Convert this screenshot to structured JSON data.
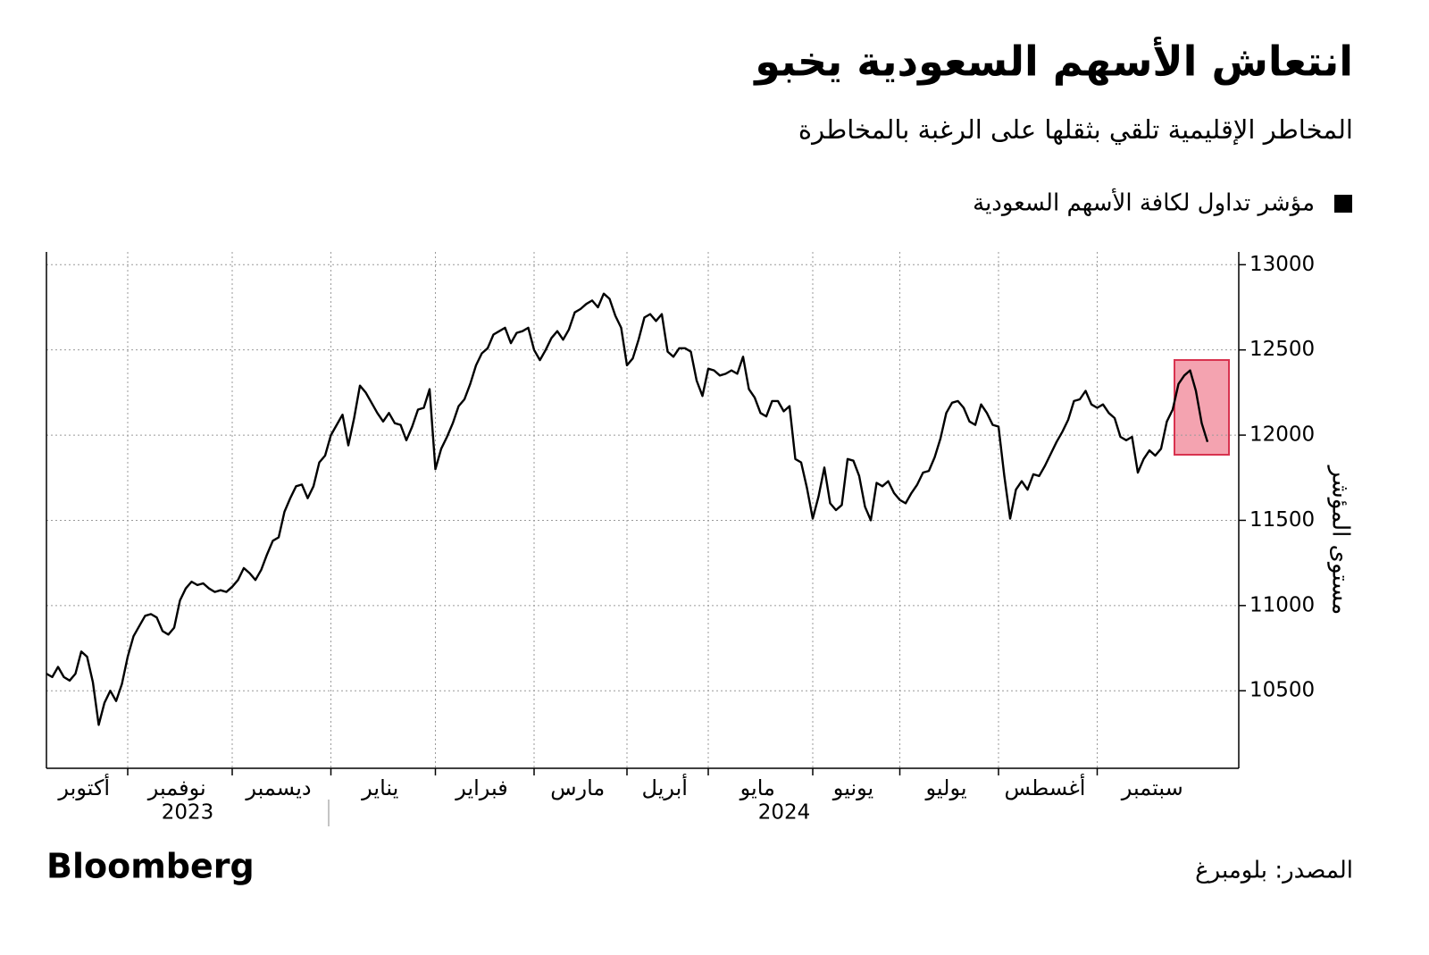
{
  "chart_data": {
    "type": "line",
    "title": "انتعاش الأسهم السعودية يخبو",
    "subtitle": "المخاطر الإقليمية تلقي بثقلها على الرغبة بالمخاطرة",
    "y_axis_label": "مستوى المؤشر",
    "source": "المصدر: بلومبرغ",
    "brand": "Bloomberg",
    "x_years": [
      "2023",
      "2024"
    ],
    "categories": [
      "أكتوبر",
      null,
      null,
      null,
      null,
      null,
      null,
      null,
      null,
      null,
      null,
      null,
      null,
      null,
      "نوفمبر",
      null,
      null,
      null,
      null,
      null,
      null,
      null,
      null,
      null,
      null,
      null,
      null,
      null,
      null,
      null,
      null,
      null,
      "ديسمبر",
      null,
      null,
      null,
      null,
      null,
      null,
      null,
      null,
      null,
      null,
      null,
      null,
      null,
      null,
      null,
      null,
      "يناير",
      null,
      null,
      null,
      null,
      null,
      null,
      null,
      null,
      null,
      null,
      null,
      null,
      null,
      null,
      null,
      null,
      null,
      "فبراير",
      null,
      null,
      null,
      null,
      null,
      null,
      null,
      null,
      null,
      null,
      null,
      null,
      null,
      null,
      null,
      null,
      "مارس",
      null,
      null,
      null,
      null,
      null,
      null,
      null,
      null,
      null,
      null,
      null,
      null,
      null,
      null,
      null,
      "أبريل",
      null,
      null,
      null,
      null,
      null,
      null,
      null,
      null,
      null,
      null,
      null,
      null,
      null,
      "مايو",
      null,
      null,
      null,
      null,
      null,
      null,
      null,
      null,
      null,
      null,
      null,
      null,
      null,
      null,
      null,
      null,
      null,
      "يونيو",
      null,
      null,
      null,
      null,
      null,
      null,
      null,
      null,
      null,
      null,
      null,
      null,
      null,
      null,
      "يوليو",
      null,
      null,
      null,
      null,
      null,
      null,
      null,
      null,
      null,
      null,
      null,
      null,
      null,
      null,
      null,
      null,
      "أغسطس",
      null,
      null,
      null,
      null,
      null,
      null,
      null,
      null,
      null,
      null,
      null,
      null,
      null,
      null,
      null,
      null,
      "سبتمبر",
      null,
      null,
      null,
      null,
      null,
      null,
      null,
      null,
      null,
      null,
      null,
      null,
      null,
      null,
      null,
      null,
      null,
      null,
      null
    ],
    "series": [
      {
        "name": "مؤشر تداول لكافة الأسهم السعودية",
        "color": "#000000",
        "values": [
          10600,
          10580,
          10640,
          10580,
          10560,
          10600,
          10730,
          10700,
          10550,
          10300,
          10430,
          10500,
          10440,
          10540,
          10700,
          10820,
          10880,
          10940,
          10950,
          10930,
          10850,
          10830,
          10870,
          11030,
          11100,
          11140,
          11120,
          11130,
          11100,
          11080,
          11090,
          11080,
          11110,
          11150,
          11220,
          11190,
          11150,
          11210,
          11300,
          11380,
          11400,
          11550,
          11630,
          11700,
          11710,
          11630,
          11700,
          11840,
          11880,
          12000,
          12060,
          12120,
          11940,
          12100,
          12290,
          12250,
          12190,
          12130,
          12080,
          12130,
          12070,
          12060,
          11970,
          12050,
          12150,
          12160,
          12270,
          11800,
          11920,
          11990,
          12070,
          12170,
          12210,
          12300,
          12410,
          12480,
          12510,
          12590,
          12610,
          12630,
          12540,
          12600,
          12610,
          12630,
          12500,
          12440,
          12500,
          12570,
          12610,
          12560,
          12620,
          12720,
          12740,
          12770,
          12790,
          12750,
          12830,
          12800,
          12700,
          12630,
          12410,
          12450,
          12560,
          12690,
          12710,
          12670,
          12710,
          12490,
          12460,
          12510,
          12510,
          12490,
          12320,
          12230,
          12390,
          12380,
          12350,
          12360,
          12380,
          12360,
          12460,
          12270,
          12220,
          12130,
          12110,
          12200,
          12200,
          12140,
          12170,
          11860,
          11840,
          11690,
          11510,
          11640,
          11810,
          11600,
          11560,
          11590,
          11860,
          11850,
          11760,
          11580,
          11500,
          11720,
          11700,
          11730,
          11660,
          11620,
          11600,
          11660,
          11710,
          11780,
          11790,
          11870,
          11980,
          12130,
          12190,
          12200,
          12160,
          12080,
          12060,
          12180,
          12130,
          12060,
          12050,
          11760,
          11510,
          11680,
          11730,
          11680,
          11770,
          11760,
          11820,
          11890,
          11960,
          12020,
          12090,
          12200,
          12210,
          12260,
          12180,
          12160,
          12180,
          12130,
          12100,
          11990,
          11970,
          11990,
          11780,
          11860,
          11910,
          11880,
          11920,
          12080,
          12150,
          12300,
          12350,
          12380,
          12260,
          12070,
          11960
        ]
      }
    ],
    "ylim": [
      10045,
      13075
    ],
    "yticks": [
      10500,
      11000,
      11500,
      12000,
      12500,
      13000
    ],
    "grid": true
  }
}
